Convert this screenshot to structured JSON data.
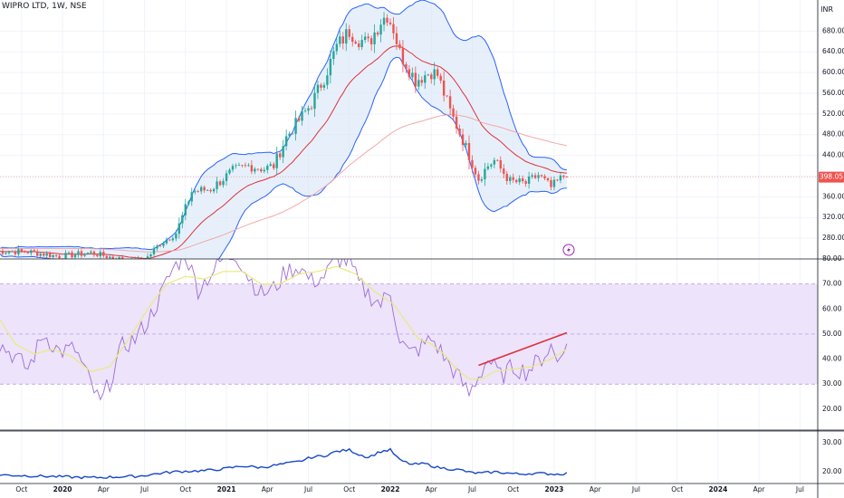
{
  "header": {
    "symbol_title": "WIPRO LTD, 1W, NSE",
    "currency": "INR"
  },
  "colors": {
    "up": "#26a69a",
    "down": "#ef5350",
    "bollinger": "#2962ff",
    "bollinger_fill": "#d7e6f7",
    "ema_fast": "#e0303a",
    "ema_slow": "#f3a8a8",
    "rsi": "#9c6bd6",
    "rsi_ma": "#eaea7a",
    "rsi_band": "#ede3fb",
    "trend": "#e0303a",
    "bottom_series": "#1848c8",
    "last_price_bg": "#ef5350"
  },
  "chart_data": [
    {
      "type": "candlestick",
      "name": "price",
      "ylim": [
        240,
        740
      ],
      "y_ticks": [
        "680.00",
        "640.00",
        "600.00",
        "560.00",
        "520.00",
        "480.00",
        "440.00",
        "400.00",
        "360.00",
        "320.00",
        "280.00"
      ],
      "last_price_label": "398.05",
      "last_price": 398.05,
      "x_labels": [
        "Oct",
        "2020",
        "Apr",
        "Jul",
        "Oct",
        "2021",
        "Apr",
        "Jul",
        "Oct",
        "2022",
        "Apr",
        "Jul",
        "Oct",
        "2023",
        "Apr",
        "Jul",
        "Oct",
        "2024",
        "Apr",
        "Jul"
      ],
      "x_label_weeks": [
        8,
        21,
        34,
        47,
        60,
        73,
        86,
        99,
        112,
        125,
        138,
        151,
        164,
        177,
        190,
        203,
        216,
        229,
        242,
        255
      ],
      "anchors": [
        [
          0,
          255
        ],
        [
          10,
          254
        ],
        [
          20,
          245
        ],
        [
          30,
          252
        ],
        [
          35,
          245
        ],
        [
          43,
          235
        ],
        [
          47,
          237
        ],
        [
          52,
          270
        ],
        [
          57,
          290
        ],
        [
          62,
          370
        ],
        [
          68,
          375
        ],
        [
          75,
          410
        ],
        [
          80,
          420
        ],
        [
          85,
          414
        ],
        [
          88,
          420
        ],
        [
          92,
          475
        ],
        [
          95,
          500
        ],
        [
          100,
          540
        ],
        [
          104,
          590
        ],
        [
          108,
          650
        ],
        [
          112,
          680
        ],
        [
          115,
          665
        ],
        [
          118,
          655
        ],
        [
          122,
          700
        ],
        [
          124,
          712
        ],
        [
          126,
          685
        ],
        [
          128,
          638
        ],
        [
          133,
          585
        ],
        [
          138,
          602
        ],
        [
          140,
          595
        ],
        [
          144,
          525
        ],
        [
          148,
          470
        ],
        [
          150,
          440
        ],
        [
          153,
          395
        ],
        [
          156,
          420
        ],
        [
          158,
          430
        ],
        [
          163,
          390
        ],
        [
          168,
          386
        ],
        [
          172,
          402
        ],
        [
          176,
          378
        ],
        [
          180,
          400
        ],
        [
          181,
          398.05
        ]
      ],
      "annotation_icon": "lightning-bolt-icon"
    },
    {
      "type": "line",
      "name": "rsi",
      "ylim": [
        12,
        80
      ],
      "y_ticks": [
        "80.00",
        "70.00",
        "60.00",
        "50.00",
        "40.00",
        "30.00",
        "20.00"
      ],
      "band": [
        30,
        70
      ],
      "midline": 50,
      "anchors": [
        [
          0,
          47
        ],
        [
          5,
          42
        ],
        [
          10,
          36
        ],
        [
          15,
          50
        ],
        [
          20,
          43
        ],
        [
          25,
          44
        ],
        [
          30,
          30
        ],
        [
          33,
          22
        ],
        [
          36,
          31
        ],
        [
          40,
          45
        ],
        [
          44,
          48
        ],
        [
          48,
          55
        ],
        [
          52,
          65
        ],
        [
          56,
          76
        ],
        [
          60,
          82
        ],
        [
          64,
          68
        ],
        [
          68,
          74
        ],
        [
          72,
          80
        ],
        [
          76,
          82
        ],
        [
          80,
          73
        ],
        [
          84,
          66
        ],
        [
          88,
          68
        ],
        [
          92,
          75
        ],
        [
          96,
          77
        ],
        [
          100,
          71
        ],
        [
          104,
          73
        ],
        [
          108,
          80
        ],
        [
          112,
          79
        ],
        [
          115,
          70
        ],
        [
          118,
          66
        ],
        [
          122,
          62
        ],
        [
          125,
          67
        ],
        [
          128,
          48
        ],
        [
          131,
          42
        ],
        [
          134,
          44
        ],
        [
          138,
          48
        ],
        [
          140,
          45
        ],
        [
          143,
          39
        ],
        [
          146,
          34
        ],
        [
          150,
          26
        ],
        [
          152,
          31
        ],
        [
          156,
          40
        ],
        [
          160,
          33
        ],
        [
          164,
          37
        ],
        [
          168,
          35
        ],
        [
          172,
          39
        ],
        [
          176,
          45
        ],
        [
          178,
          39
        ],
        [
          180,
          46
        ],
        [
          181,
          44
        ]
      ],
      "ma_anchors": [
        [
          0,
          58
        ],
        [
          6,
          46
        ],
        [
          12,
          42
        ],
        [
          18,
          44
        ],
        [
          24,
          41
        ],
        [
          30,
          35
        ],
        [
          36,
          37
        ],
        [
          42,
          48
        ],
        [
          48,
          60
        ],
        [
          54,
          70
        ],
        [
          60,
          73
        ],
        [
          66,
          72
        ],
        [
          72,
          75
        ],
        [
          78,
          75
        ],
        [
          84,
          70
        ],
        [
          90,
          70
        ],
        [
          96,
          74
        ],
        [
          102,
          75
        ],
        [
          108,
          77
        ],
        [
          114,
          74
        ],
        [
          120,
          67
        ],
        [
          126,
          62
        ],
        [
          130,
          55
        ],
        [
          134,
          48
        ],
        [
          138,
          46
        ],
        [
          142,
          42
        ],
        [
          146,
          36
        ],
        [
          150,
          32
        ],
        [
          154,
          32
        ],
        [
          158,
          35
        ],
        [
          164,
          36
        ],
        [
          170,
          37
        ],
        [
          176,
          40
        ],
        [
          181,
          44
        ]
      ],
      "trendline": [
        [
          153,
          37.5
        ],
        [
          181,
          50.5
        ]
      ]
    },
    {
      "type": "line",
      "name": "lower-indicator",
      "ylim": [
        16,
        34
      ],
      "y_ticks": [
        "30.00",
        "20.00"
      ],
      "anchors": [
        [
          0,
          19
        ],
        [
          15,
          18.5
        ],
        [
          30,
          18
        ],
        [
          45,
          18.5
        ],
        [
          52,
          19.5
        ],
        [
          56,
          20
        ],
        [
          60,
          20.2
        ],
        [
          66,
          20.4
        ],
        [
          72,
          21
        ],
        [
          78,
          22
        ],
        [
          84,
          21.5
        ],
        [
          90,
          22.5
        ],
        [
          96,
          23.5
        ],
        [
          100,
          25
        ],
        [
          104,
          25.5
        ],
        [
          108,
          27
        ],
        [
          112,
          27.5
        ],
        [
          115,
          26
        ],
        [
          118,
          25
        ],
        [
          122,
          27
        ],
        [
          125,
          27.5
        ],
        [
          128,
          24
        ],
        [
          132,
          22.5
        ],
        [
          136,
          22.8
        ],
        [
          140,
          21.5
        ],
        [
          144,
          21
        ],
        [
          148,
          20.5
        ],
        [
          150,
          19.8
        ],
        [
          154,
          19.5
        ],
        [
          158,
          20
        ],
        [
          162,
          19.6
        ],
        [
          166,
          19.2
        ],
        [
          170,
          19.5
        ],
        [
          174,
          19.4
        ],
        [
          178,
          19.2
        ],
        [
          181,
          19.5
        ]
      ]
    }
  ]
}
